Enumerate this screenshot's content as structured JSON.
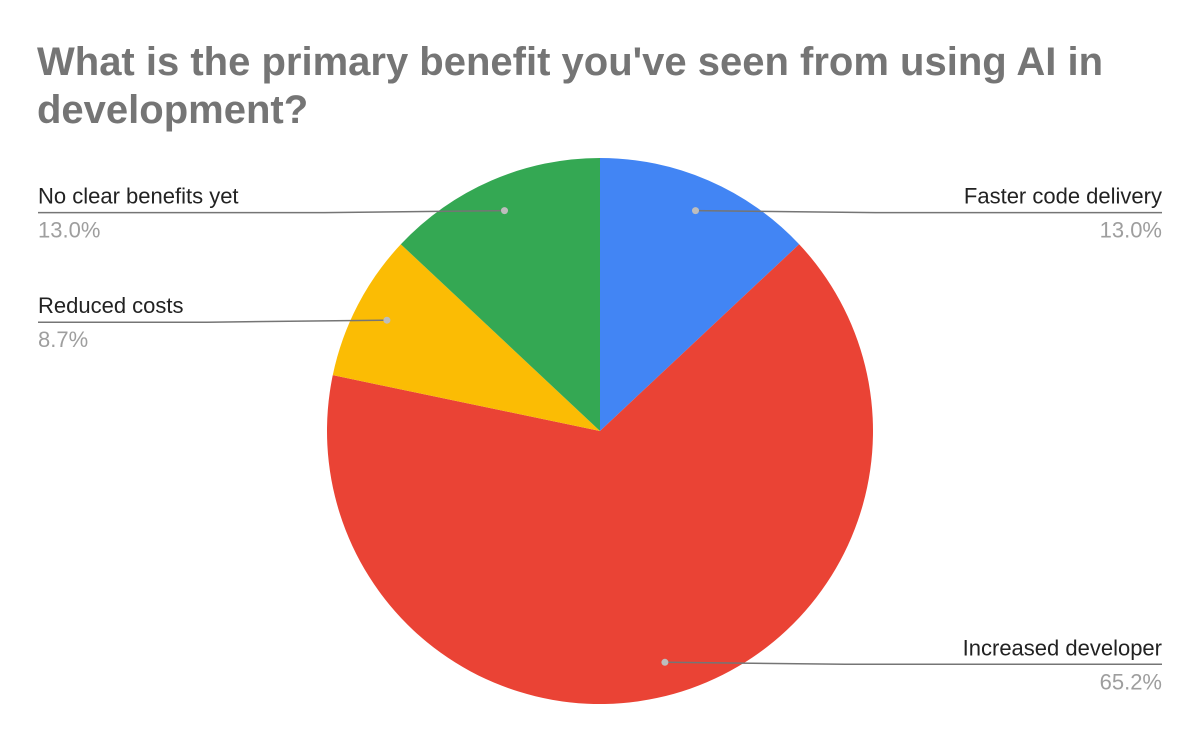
{
  "chart_data": {
    "type": "pie",
    "title": "What is the primary benefit you've seen from using AI in development?",
    "slices": [
      {
        "label": "Faster code delivery",
        "value": 13.0,
        "value_label": "13.0%",
        "color": "#4285f4"
      },
      {
        "label": "Increased developer",
        "value": 65.2,
        "value_label": "65.2%",
        "color": "#ea4335"
      },
      {
        "label": "Reduced costs",
        "value": 8.7,
        "value_label": "8.7%",
        "color": "#fbbc04"
      },
      {
        "label": "No clear benefits yet",
        "value": 13.0,
        "value_label": "13.0%",
        "color": "#34a853"
      }
    ],
    "start_angle_deg": 0,
    "direction": "clockwise",
    "legend": "labels-outside"
  }
}
